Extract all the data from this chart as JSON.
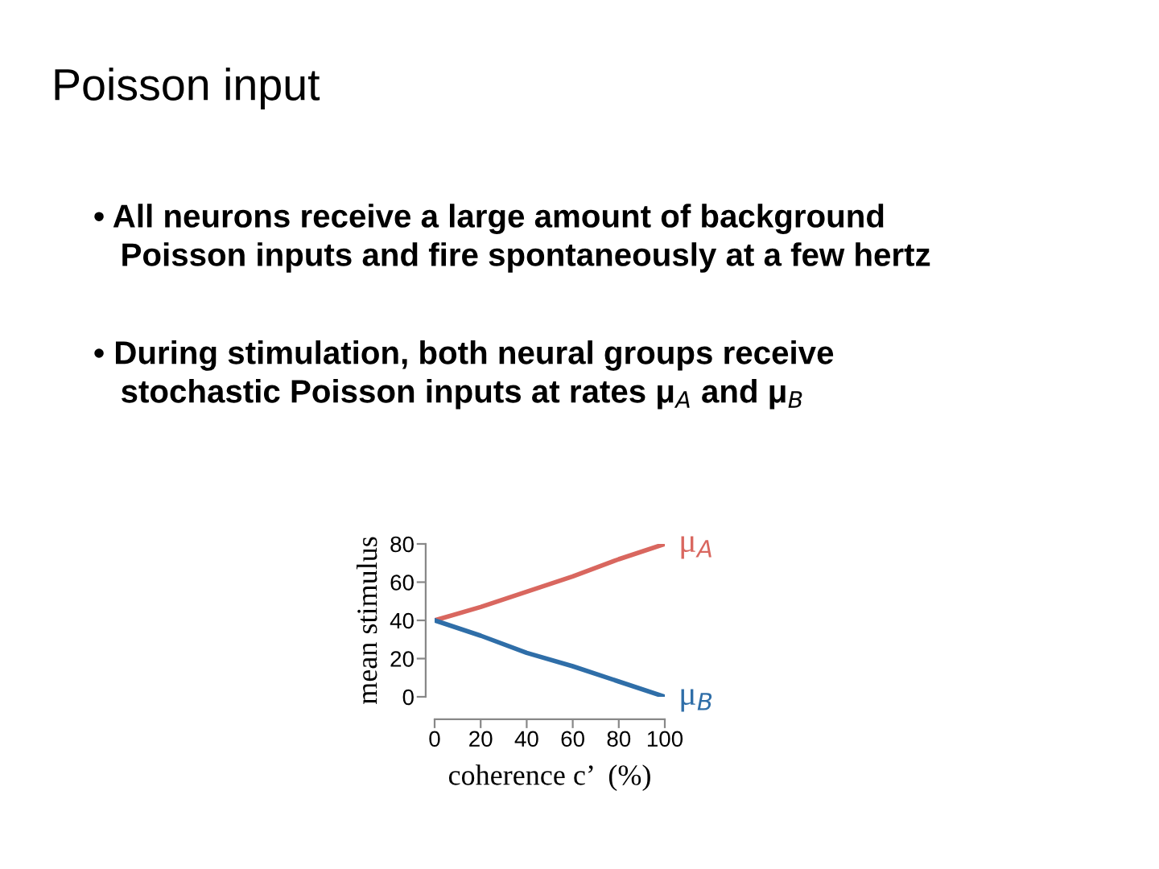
{
  "chart_data": {
    "type": "line",
    "title": "Poisson input",
    "annotations": [
      "• All neurons receive a large amount of background\n   Poisson inputs and fire spontaneously at a few hertz",
      "• During stimulation, both neural groups receive\n   stochastic Poisson inputs at rates μ$_{A}$ and μ$_{B}$"
    ],
    "x": [
      0,
      20,
      40,
      60,
      80,
      100
    ],
    "series": [
      {
        "name": "μ$_{A}$",
        "color": "#d9675f",
        "values": [
          40,
          47,
          55,
          63,
          72,
          80
        ]
      },
      {
        "name": "μ$_{B}$",
        "color": "#2f6ea8",
        "values": [
          40,
          32,
          23,
          16,
          8,
          0
        ]
      }
    ],
    "xlabel": "coherence c’  (%)",
    "ylabel": "mean stimulus",
    "xlim": [
      0,
      100
    ],
    "xticks": [
      0,
      20,
      40,
      60,
      80,
      100
    ],
    "ylim": [
      0,
      80
    ],
    "yticks": [
      0,
      20,
      40,
      60,
      80
    ],
    "grid": false,
    "legend": false
  }
}
